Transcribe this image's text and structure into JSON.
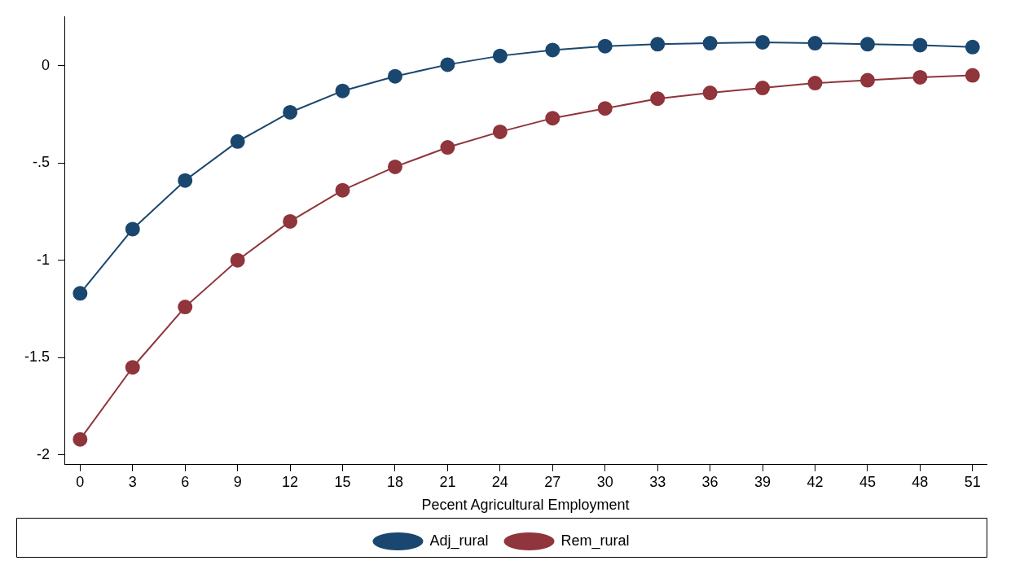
{
  "chart_data": {
    "type": "line",
    "xlabel": "Pecent Agricultural Employment",
    "x": [
      0,
      3,
      6,
      9,
      12,
      15,
      18,
      21,
      24,
      27,
      30,
      33,
      36,
      39,
      42,
      45,
      48,
      51
    ],
    "series": [
      {
        "name": "Adj_rural",
        "color": "#1a476f",
        "values": [
          -1.17,
          -0.84,
          -0.59,
          -0.39,
          -0.24,
          -0.13,
          -0.055,
          0.005,
          0.05,
          0.08,
          0.1,
          0.11,
          0.115,
          0.12,
          0.115,
          0.11,
          0.105,
          0.095
        ]
      },
      {
        "name": "Rem_rural",
        "color": "#90353b",
        "values": [
          -1.92,
          -1.55,
          -1.24,
          -1.0,
          -0.8,
          -0.64,
          -0.52,
          -0.42,
          -0.34,
          -0.27,
          -0.22,
          -0.17,
          -0.14,
          -0.115,
          -0.09,
          -0.075,
          -0.06,
          -0.05
        ]
      }
    ],
    "xlim": [
      -0.9,
      51.8
    ],
    "xticks": [
      0,
      3,
      6,
      9,
      12,
      15,
      18,
      21,
      24,
      27,
      30,
      33,
      36,
      39,
      42,
      45,
      48,
      51
    ],
    "ylim": [
      -2.05,
      0.25
    ],
    "yticks": [
      {
        "value": -2,
        "label": "-2"
      },
      {
        "value": -1.5,
        "label": "-1.5"
      },
      {
        "value": -1,
        "label": "-1"
      },
      {
        "value": -0.5,
        "label": "-.5"
      },
      {
        "value": 0,
        "label": "0"
      }
    ],
    "grid": false,
    "legend": "bottom",
    "marker": "circle",
    "line_style": "solid"
  }
}
